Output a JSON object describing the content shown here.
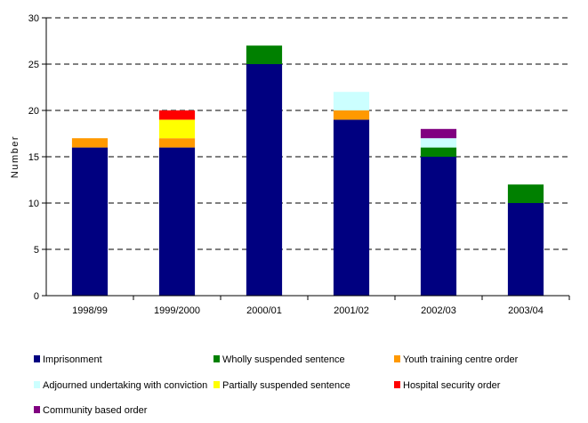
{
  "chart_data": {
    "type": "bar",
    "stacked": true,
    "ylabel": "Number",
    "xlabel": "",
    "ylim": [
      0,
      30
    ],
    "yticks": [
      0,
      5,
      10,
      15,
      20,
      25,
      30
    ],
    "grid": "horizontal dashed",
    "legend_position": "bottom",
    "categories": [
      "1998/99",
      "1999/2000",
      "2000/01",
      "2001/02",
      "2002/03",
      "2003/04"
    ],
    "series": [
      {
        "name": "Imprisonment",
        "color": "#000080",
        "values": [
          16,
          16,
          25,
          19,
          15,
          10
        ]
      },
      {
        "name": "Wholly suspended sentence",
        "color": "#008000",
        "values": [
          0,
          0,
          2,
          0,
          1,
          2
        ]
      },
      {
        "name": "Youth training centre order",
        "color": "#FF9900",
        "values": [
          1,
          1,
          0,
          1,
          0,
          0
        ]
      },
      {
        "name": "Adjourned undertaking with conviction",
        "color": "#CCFFFF",
        "values": [
          0,
          0,
          0,
          2,
          1,
          0
        ]
      },
      {
        "name": "Partially suspended sentence",
        "color": "#FFFF00",
        "values": [
          0,
          2,
          0,
          0,
          0,
          0
        ]
      },
      {
        "name": "Hospital security order",
        "color": "#FF0000",
        "values": [
          0,
          1,
          0,
          0,
          0,
          0
        ]
      },
      {
        "name": "Community based order",
        "color": "#800080",
        "values": [
          0,
          0,
          0,
          0,
          1,
          0
        ]
      }
    ]
  }
}
